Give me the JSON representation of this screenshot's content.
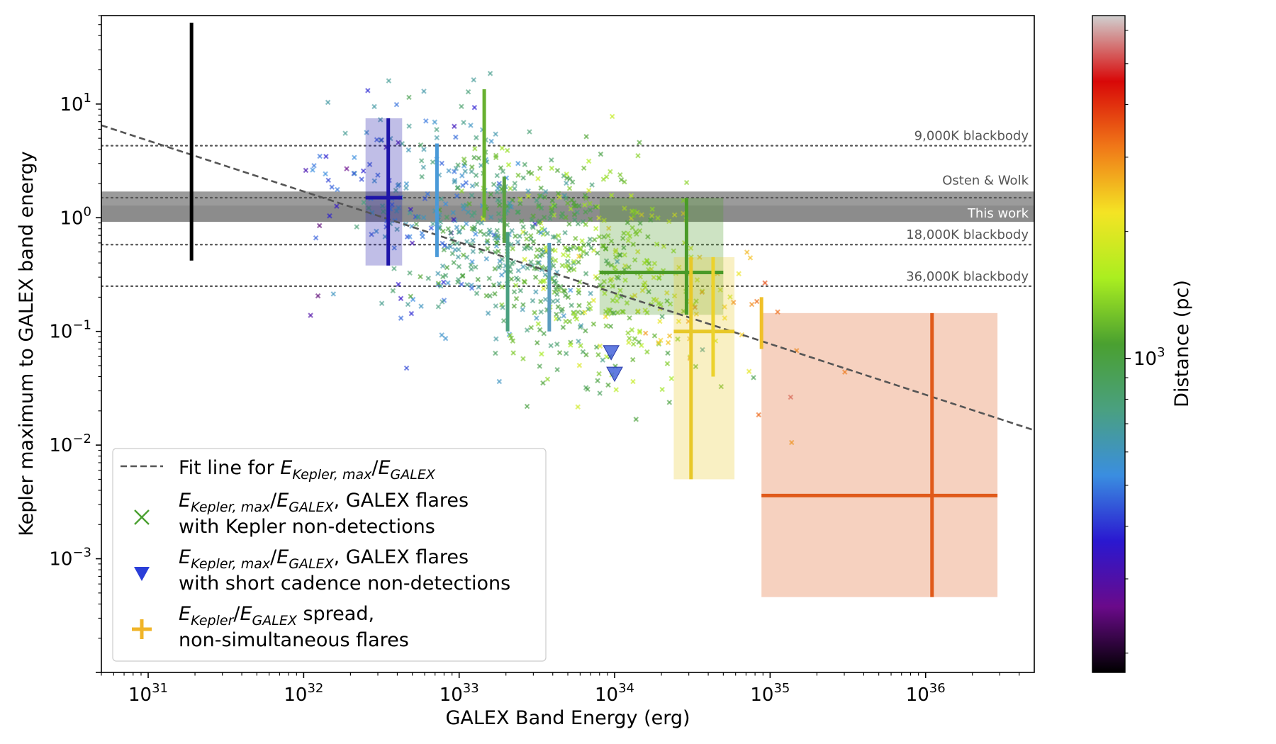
{
  "chart_data": {
    "type": "scatter",
    "title": "",
    "xlabel": "GALEX Band Energy (erg)",
    "ylabel": "Kepler maximum to GALEX band energy",
    "xscale": "log",
    "yscale": "log",
    "xlim": [
      5e+30,
      5e+36
    ],
    "ylim": [
      0.0001,
      60
    ],
    "x_ticks": [
      {
        "value": 1e+31,
        "base": "10",
        "exp": "31"
      },
      {
        "value": 1e+32,
        "base": "10",
        "exp": "32"
      },
      {
        "value": 1e+33,
        "base": "10",
        "exp": "33"
      },
      {
        "value": 1e+34,
        "base": "10",
        "exp": "34"
      },
      {
        "value": 1e+35,
        "base": "10",
        "exp": "35"
      },
      {
        "value": 1e+36,
        "base": "10",
        "exp": "36"
      }
    ],
    "y_ticks": [
      {
        "value": 10,
        "base": "10",
        "exp": "1"
      },
      {
        "value": 1,
        "base": "10",
        "exp": "0"
      },
      {
        "value": 0.1,
        "base": "10",
        "exp": "−1"
      },
      {
        "value": 0.01,
        "base": "10",
        "exp": "−2"
      },
      {
        "value": 0.001,
        "base": "10",
        "exp": "−3"
      }
    ],
    "colorbar": {
      "label": "Distance (pc)",
      "scale": "log",
      "range": [
        180,
        6500
      ],
      "tick": {
        "value": 1000,
        "base": "10",
        "exp": "3"
      },
      "colors": [
        "#000000",
        "#6a0a8a",
        "#2a18d0",
        "#3a8ee0",
        "#4aa080",
        "#4aa030",
        "#aaee20",
        "#f4e424",
        "#f07818",
        "#d80808",
        "#d0d0d0"
      ]
    },
    "reference_lines": [
      {
        "name": "9,000K blackbody",
        "y": 4.3,
        "color": "#555555",
        "style": "dotted"
      },
      {
        "name": "18,000K blackbody",
        "y": 0.58,
        "color": "#555555",
        "style": "dotted"
      },
      {
        "name": "36,000K blackbody",
        "y": 0.25,
        "color": "#555555",
        "style": "dotted"
      },
      {
        "name": "",
        "y": 1.5,
        "color": "#555555",
        "style": "dotted"
      }
    ],
    "bands": [
      {
        "name": "Osten & Wolk",
        "y_low": 0.92,
        "y_high": 1.7,
        "color": "#909090",
        "label_color": "#555555"
      },
      {
        "name": "This work",
        "y_low": 0.92,
        "y_high": 1.7,
        "color": "#909090",
        "label_color": "#ffffff"
      }
    ],
    "fit_line": {
      "name": "Fit line for E_Kepler,max/E_GALEX",
      "x": [
        5e+30,
        5e+36
      ],
      "y": [
        6.5,
        0.0135
      ],
      "color": "#555555",
      "style": "dashed"
    },
    "flare_spreads": [
      {
        "x": 1.9e+31,
        "x_low": null,
        "x_high": null,
        "y": 3.6,
        "y_low": 0.42,
        "y_high": 52,
        "color": "#000000",
        "box": false
      },
      {
        "x": 3.5e+32,
        "x_low": 2.5e+32,
        "x_high": 4.3e+32,
        "y": 1.5,
        "y_low": 0.38,
        "y_high": 7.5,
        "color": "#1e14a8",
        "box": true
      },
      {
        "x": 7.2e+32,
        "x_low": null,
        "x_high": null,
        "y": 1.5,
        "y_low": 0.45,
        "y_high": 4.5,
        "color": "#4a9ad8",
        "box": false
      },
      {
        "x": 1.45e+33,
        "x_low": null,
        "x_high": null,
        "y": 4.7,
        "y_low": 1.0,
        "y_high": 13.5,
        "color": "#68b030",
        "box": false
      },
      {
        "x": 1.95e+33,
        "x_low": null,
        "x_high": null,
        "y": 1.15,
        "y_low": 0.6,
        "y_high": 2.3,
        "color": "#5aa040",
        "box": false
      },
      {
        "x": 2.05e+33,
        "x_low": null,
        "x_high": null,
        "y": 0.4,
        "y_low": 0.1,
        "y_high": 0.75,
        "color": "#4aa080",
        "box": false
      },
      {
        "x": 3.8e+33,
        "x_low": null,
        "x_high": null,
        "y": 0.3,
        "y_low": 0.1,
        "y_high": 0.6,
        "color": "#5a9cc0",
        "box": false
      },
      {
        "x": 2.9e+34,
        "x_low": 8e+33,
        "x_high": 5e+34,
        "y": 0.33,
        "y_low": 0.14,
        "y_high": 1.5,
        "color": "#4a9a28",
        "box": true
      },
      {
        "x": 3.1e+34,
        "x_low": 2.4e+34,
        "x_high": 5.9e+34,
        "y": 0.1,
        "y_low": 0.005,
        "y_high": 0.45,
        "color": "#e8c828",
        "box": true
      },
      {
        "x": 4.3e+34,
        "x_low": null,
        "x_high": null,
        "y": 0.2,
        "y_low": 0.04,
        "y_high": 0.45,
        "color": "#ecd22c",
        "box": false
      },
      {
        "x": 8.8e+34,
        "x_low": null,
        "x_high": null,
        "y": 0.12,
        "y_low": 0.07,
        "y_high": 0.2,
        "color": "#f0c028",
        "box": false
      },
      {
        "x": 1.1e+36,
        "x_low": 8.8e+34,
        "x_high": 2.9e+36,
        "y": 0.0036,
        "y_low": 0.00046,
        "y_high": 0.145,
        "color": "#e05a1a",
        "box": true
      }
    ],
    "upper_limits": [
      {
        "x": 9.5e+33,
        "y": 0.065,
        "color": "#3a5ad8"
      },
      {
        "x": 1e+34,
        "y": 0.042,
        "color": "#3a5ad8"
      }
    ],
    "scatter_cloud": {
      "name": "E_Kepler,max/E_GALEX, GALEX flares with Kepler non-detections",
      "marker": "x",
      "count": 900,
      "x_range": [
        1e+32,
        3e+36
      ],
      "y_range": [
        0.001,
        20
      ]
    },
    "legend": {
      "placement": "lower-left",
      "entries": [
        {
          "type": "dashed-line",
          "color": "#555555",
          "lines": [
            [
              {
                "t": "Fit line for "
              },
              {
                "t": "E",
                "i": true
              },
              {
                "t": "Kepler, max",
                "i": true,
                "sub": true
              },
              {
                "t": "/"
              },
              {
                "t": "E",
                "i": true
              },
              {
                "t": "GALEX",
                "i": true,
                "sub": true
              }
            ]
          ]
        },
        {
          "type": "x-marker",
          "color": "#4aa030",
          "lines": [
            [
              {
                "t": "E",
                "i": true
              },
              {
                "t": "Kepler, max",
                "i": true,
                "sub": true
              },
              {
                "t": "/"
              },
              {
                "t": "E",
                "i": true
              },
              {
                "t": "GALEX",
                "i": true,
                "sub": true
              },
              {
                "t": ", GALEX flares"
              }
            ],
            [
              {
                "t": "with Kepler non-detections"
              }
            ]
          ]
        },
        {
          "type": "triangle",
          "color": "#2a3ed8",
          "lines": [
            [
              {
                "t": "E",
                "i": true
              },
              {
                "t": "Kepler, max",
                "i": true,
                "sub": true
              },
              {
                "t": "/"
              },
              {
                "t": "E",
                "i": true
              },
              {
                "t": "GALEX",
                "i": true,
                "sub": true
              },
              {
                "t": ", GALEX flares"
              }
            ],
            [
              {
                "t": "with short cadence non-detections"
              }
            ]
          ]
        },
        {
          "type": "plus",
          "color": "#f0b428",
          "lines": [
            [
              {
                "t": "E",
                "i": true
              },
              {
                "t": "Kepler",
                "i": true,
                "sub": true
              },
              {
                "t": "/"
              },
              {
                "t": "E",
                "i": true
              },
              {
                "t": "GALEX",
                "i": true,
                "sub": true
              },
              {
                "t": " spread,"
              }
            ],
            [
              {
                "t": "non-simultaneous flares"
              }
            ]
          ]
        }
      ]
    },
    "grid": false
  }
}
